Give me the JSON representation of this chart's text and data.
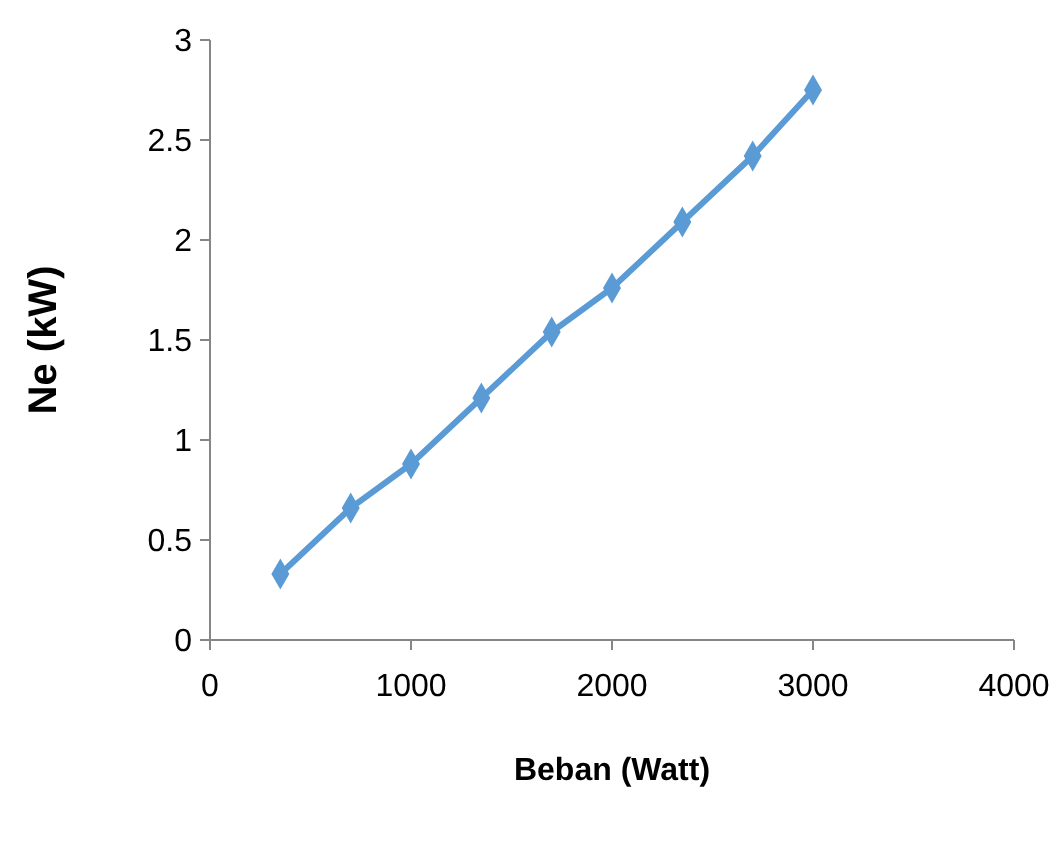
{
  "chart_data": {
    "type": "line",
    "xlabel": "Beban (Watt)",
    "ylabel": "Ne (kW)",
    "x": [
      350,
      700,
      1000,
      1350,
      1700,
      2000,
      2350,
      2700,
      3000
    ],
    "series": [
      {
        "color": "#5b9bd5",
        "values": [
          0.33,
          0.66,
          0.88,
          1.21,
          1.54,
          1.76,
          2.09,
          2.42,
          2.75
        ]
      }
    ],
    "xlim": [
      0,
      4000
    ],
    "xticks": [
      0,
      1000,
      2000,
      3000,
      4000
    ],
    "ylim": [
      0,
      3
    ],
    "yticks": [
      0,
      0.5,
      1,
      1.5,
      2,
      2.5,
      3
    ],
    "grid": false,
    "marker": "diamond",
    "line_style": "solid"
  }
}
